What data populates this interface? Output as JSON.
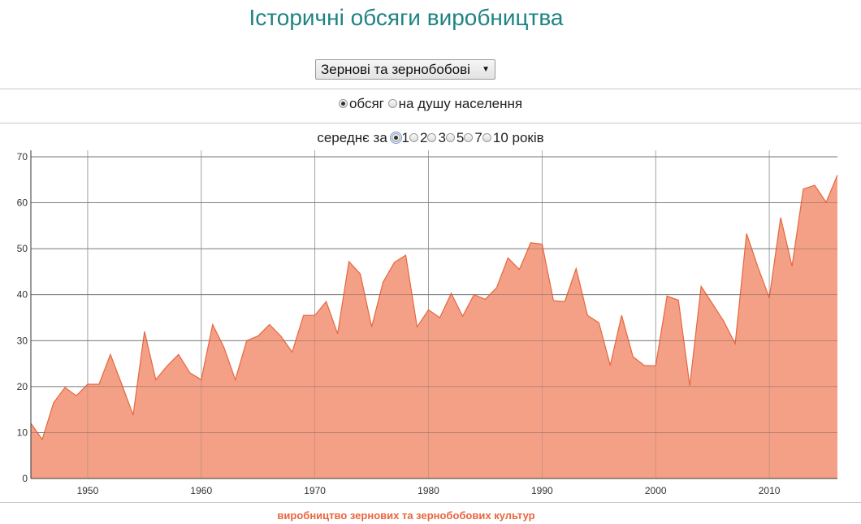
{
  "title": "Історичні обсяги виробництва",
  "crop_select": {
    "value": "Зернові та зернобобові"
  },
  "measure": {
    "options": [
      {
        "label": "обсяг",
        "checked": true
      },
      {
        "label": "на душу населення",
        "checked": false
      }
    ]
  },
  "average": {
    "prefix": "середнє за",
    "options": [
      {
        "label": "1",
        "checked": true
      },
      {
        "label": "2",
        "checked": false
      },
      {
        "label": "3",
        "checked": false
      },
      {
        "label": "5",
        "checked": false
      },
      {
        "label": "7",
        "checked": false
      },
      {
        "label": "10",
        "checked": false
      }
    ],
    "suffix": "років"
  },
  "chart_data": {
    "type": "area",
    "title": "",
    "caption": "виробництво зернових та зернобобових культур",
    "xlabel": "",
    "ylabel": "",
    "xlim": [
      1945,
      2016
    ],
    "ylim": [
      0,
      70
    ],
    "grid": true,
    "fill_color": "#f29b80",
    "line_color": "#e8663e",
    "x_ticks": [
      1950,
      1960,
      1970,
      1980,
      1990,
      2000,
      2010
    ],
    "y_ticks": [
      0,
      10,
      20,
      30,
      40,
      50,
      60,
      70
    ],
    "x": [
      1945,
      1946,
      1947,
      1948,
      1949,
      1950,
      1951,
      1952,
      1953,
      1954,
      1955,
      1956,
      1957,
      1958,
      1959,
      1960,
      1961,
      1962,
      1963,
      1964,
      1965,
      1966,
      1967,
      1968,
      1969,
      1970,
      1971,
      1972,
      1973,
      1974,
      1975,
      1976,
      1977,
      1978,
      1979,
      1980,
      1981,
      1982,
      1983,
      1984,
      1985,
      1986,
      1987,
      1988,
      1989,
      1990,
      1991,
      1992,
      1993,
      1994,
      1995,
      1996,
      1997,
      1998,
      1999,
      2000,
      2001,
      2002,
      2003,
      2004,
      2005,
      2006,
      2007,
      2008,
      2009,
      2010,
      2011,
      2012,
      2013,
      2014,
      2015,
      2016
    ],
    "values": [
      12,
      8.5,
      16.5,
      19.8,
      18,
      20.5,
      20.5,
      27,
      20.5,
      13.8,
      32,
      21.5,
      24.5,
      27,
      23,
      21.5,
      33.5,
      28.5,
      21.5,
      30,
      31,
      33.5,
      31,
      27.5,
      35.5,
      35.5,
      38.5,
      31.5,
      47.2,
      44.5,
      33,
      42.7,
      47,
      48.6,
      33,
      36.7,
      35,
      40.3,
      35.3,
      40,
      39,
      41.5,
      48,
      45.5,
      51.3,
      51,
      38.7,
      38.5,
      45.7,
      35.5,
      33.9,
      24.6,
      35.5,
      26.5,
      24.6,
      24.5,
      39.7,
      38.8,
      20.2,
      41.8,
      38,
      34.2,
      29.3,
      53.3,
      46,
      39.3,
      56.8,
      46.2,
      63,
      63.8,
      60.1,
      66
    ]
  }
}
